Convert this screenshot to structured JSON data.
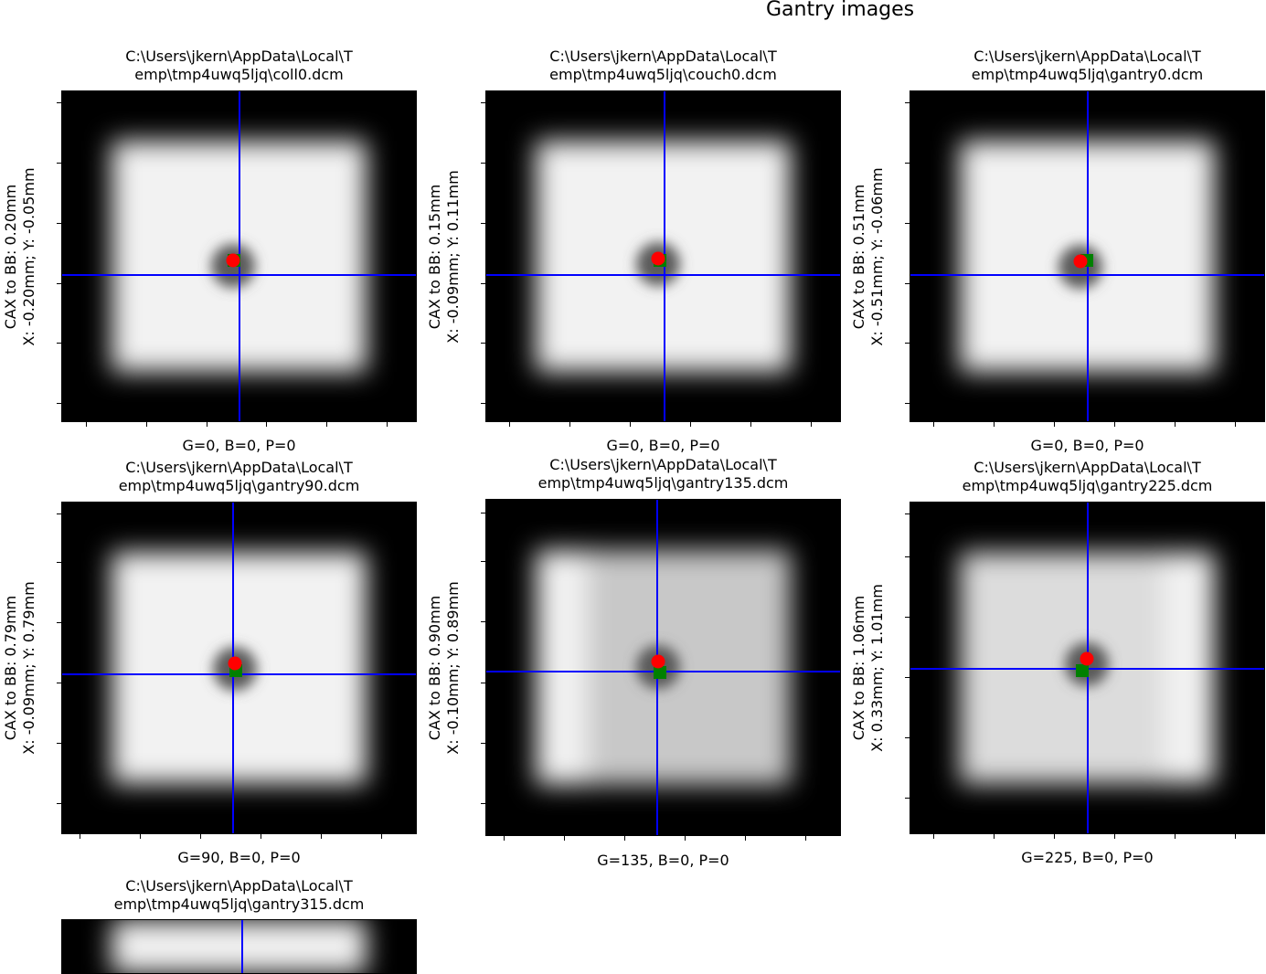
{
  "figure": {
    "suptitle": "Gantry images"
  },
  "chart_data": [
    {
      "type": "image",
      "file": "C:\\Users\\jkern\\AppData\\Local\\Temp\\tmp4uwq5ljq\\coll0.dcm",
      "title_lines": [
        "C:\\Users\\jkern\\AppData\\Local\\T",
        "emp\\tmp4uwq5ljq\\coll0.dcm"
      ],
      "xlabel": "G=0, B=0, P=0",
      "ylabel_lines": [
        "CAX to BB: 0.20mm",
        "X: -0.20mm; Y: -0.05mm"
      ],
      "gantry": 0,
      "couch": 0,
      "collimator": 0,
      "cax_to_bb_mm": 0.2,
      "x_mm": -0.2,
      "y_mm": -0.05,
      "markers": {
        "bb": "red-circle",
        "epid_center": "green-square",
        "field_cax": "blue-crosshair"
      },
      "field_shape": "uniform",
      "colors": {
        "bb": "#ff0000",
        "epid": "#008000",
        "cax": "#0000ff"
      }
    },
    {
      "type": "image",
      "file": "C:\\Users\\jkern\\AppData\\Local\\Temp\\tmp4uwq5ljq\\couch0.dcm",
      "title_lines": [
        "C:\\Users\\jkern\\AppData\\Local\\T",
        "emp\\tmp4uwq5ljq\\couch0.dcm"
      ],
      "xlabel": "G=0, B=0, P=0",
      "ylabel_lines": [
        "CAX to BB: 0.15mm",
        "X: -0.09mm; Y: 0.11mm"
      ],
      "gantry": 0,
      "couch": 0,
      "collimator": 0,
      "cax_to_bb_mm": 0.15,
      "x_mm": -0.09,
      "y_mm": 0.11,
      "markers": {
        "bb": "red-circle",
        "epid_center": "green-square",
        "field_cax": "blue-crosshair"
      },
      "field_shape": "uniform",
      "colors": {
        "bb": "#ff0000",
        "epid": "#008000",
        "cax": "#0000ff"
      }
    },
    {
      "type": "image",
      "file": "C:\\Users\\jkern\\AppData\\Local\\Temp\\tmp4uwq5ljq\\gantry0.dcm",
      "title_lines": [
        "C:\\Users\\jkern\\AppData\\Local\\T",
        "emp\\tmp4uwq5ljq\\gantry0.dcm"
      ],
      "xlabel": "G=0, B=0, P=0",
      "ylabel_lines": [
        "CAX to BB: 0.51mm",
        "X: -0.51mm; Y: -0.06mm"
      ],
      "gantry": 0,
      "couch": 0,
      "collimator": 0,
      "cax_to_bb_mm": 0.51,
      "x_mm": -0.51,
      "y_mm": -0.06,
      "markers": {
        "bb": "red-circle",
        "epid_center": "green-square",
        "field_cax": "blue-crosshair"
      },
      "field_shape": "uniform",
      "colors": {
        "bb": "#ff0000",
        "epid": "#008000",
        "cax": "#0000ff"
      }
    },
    {
      "type": "image",
      "file": "C:\\Users\\jkern\\AppData\\Local\\Temp\\tmp4uwq5ljq\\gantry90.dcm",
      "title_lines": [
        "C:\\Users\\jkern\\AppData\\Local\\T",
        "emp\\tmp4uwq5ljq\\gantry90.dcm"
      ],
      "xlabel": "G=90, B=0, P=0",
      "ylabel_lines": [
        "CAX to BB: 0.79mm",
        "X: -0.09mm; Y: 0.79mm"
      ],
      "gantry": 90,
      "couch": 0,
      "collimator": 0,
      "cax_to_bb_mm": 0.79,
      "x_mm": -0.09,
      "y_mm": 0.79,
      "markers": {
        "bb": "red-circle",
        "epid_center": "green-square",
        "field_cax": "blue-crosshair"
      },
      "field_shape": "uniform",
      "colors": {
        "bb": "#ff0000",
        "epid": "#008000",
        "cax": "#0000ff"
      }
    },
    {
      "type": "image",
      "file": "C:\\Users\\jkern\\AppData\\Local\\Temp\\tmp4uwq5ljq\\gantry135.dcm",
      "title_lines": [
        "C:\\Users\\jkern\\AppData\\Local\\T",
        "emp\\tmp4uwq5ljq\\gantry135.dcm"
      ],
      "xlabel": "G=135, B=0, P=0",
      "ylabel_lines": [
        "CAX to BB: 0.90mm",
        "X: -0.10mm; Y: 0.89mm"
      ],
      "gantry": 135,
      "couch": 0,
      "collimator": 0,
      "cax_to_bb_mm": 0.9,
      "x_mm": -0.1,
      "y_mm": 0.89,
      "markers": {
        "bb": "red-circle",
        "epid_center": "green-square",
        "field_cax": "blue-crosshair"
      },
      "field_shape": "left-band",
      "colors": {
        "bb": "#ff0000",
        "epid": "#008000",
        "cax": "#0000ff"
      }
    },
    {
      "type": "image",
      "file": "C:\\Users\\jkern\\AppData\\Local\\Temp\\tmp4uwq5ljq\\gantry225.dcm",
      "title_lines": [
        "C:\\Users\\jkern\\AppData\\Local\\T",
        "emp\\tmp4uwq5ljq\\gantry225.dcm"
      ],
      "xlabel": "G=225, B=0, P=0",
      "ylabel_lines": [
        "CAX to BB: 1.06mm",
        "X: 0.33mm; Y: 1.01mm"
      ],
      "gantry": 225,
      "couch": 0,
      "collimator": 0,
      "cax_to_bb_mm": 1.06,
      "x_mm": 0.33,
      "y_mm": 1.01,
      "markers": {
        "bb": "red-circle",
        "epid_center": "green-square",
        "field_cax": "blue-crosshair"
      },
      "field_shape": "right-band",
      "colors": {
        "bb": "#ff0000",
        "epid": "#008000",
        "cax": "#0000ff"
      }
    },
    {
      "type": "image",
      "file": "C:\\Users\\jkern\\AppData\\Local\\Temp\\tmp4uwq5ljq\\gantry315.dcm",
      "title_lines": [
        "C:\\Users\\jkern\\AppData\\Local\\T",
        "emp\\tmp4uwq5ljq\\gantry315.dcm"
      ],
      "partially_visible": true,
      "markers": {
        "field_cax": "blue-crosshair"
      },
      "field_shape": "uniform",
      "colors": {
        "cax": "#0000ff"
      }
    }
  ]
}
